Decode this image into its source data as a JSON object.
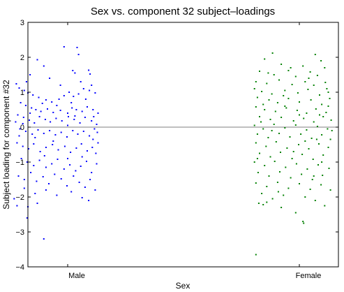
{
  "chart_data": {
    "type": "scatter",
    "title": "Sex vs. component 32 subject–loadings",
    "xlabel": "Sex",
    "ylabel": "Subject loading for component #32",
    "categories": [
      "Male",
      "Female"
    ],
    "ylim": [
      -4,
      3
    ],
    "yticks": [
      -4,
      -3,
      -2,
      -1,
      0,
      1,
      2,
      3
    ],
    "yticklabels": [
      "−4",
      "−3",
      "−2",
      "−1",
      "0",
      "1",
      "2",
      "3"
    ],
    "reference_line_y": 0,
    "grid": false,
    "legend": "none",
    "series": [
      {
        "category": "Male",
        "color": "#0000ff",
        "points": [
          [
            -0.05,
            2.3
          ],
          [
            0.13,
            2.28
          ],
          [
            0.15,
            2.08
          ],
          [
            -0.42,
            1.93
          ],
          [
            -0.33,
            1.75
          ],
          [
            0.07,
            1.62
          ],
          [
            0.1,
            1.55
          ],
          [
            -0.52,
            1.5
          ],
          [
            0.29,
            1.63
          ],
          [
            0.31,
            1.52
          ],
          [
            -0.71,
            1.24
          ],
          [
            -0.67,
            1.12
          ],
          [
            -0.6,
            1.05
          ],
          [
            -0.55,
            0.98
          ],
          [
            -0.48,
            0.92
          ],
          [
            -0.4,
            0.85
          ],
          [
            -0.3,
            0.78
          ],
          [
            -0.22,
            0.72
          ],
          [
            -0.12,
            0.8
          ],
          [
            -0.05,
            0.9
          ],
          [
            0.02,
            1.0
          ],
          [
            0.08,
            0.88
          ],
          [
            0.15,
            0.95
          ],
          [
            0.22,
            1.1
          ],
          [
            0.3,
            1.05
          ],
          [
            0.38,
            0.98
          ],
          [
            -0.65,
            0.7
          ],
          [
            -0.58,
            0.62
          ],
          [
            -0.5,
            0.55
          ],
          [
            -0.44,
            0.5
          ],
          [
            -0.37,
            0.45
          ],
          [
            -0.28,
            0.52
          ],
          [
            -0.2,
            0.42
          ],
          [
            -0.1,
            0.48
          ],
          [
            0.0,
            0.4
          ],
          [
            0.06,
            0.55
          ],
          [
            0.12,
            0.5
          ],
          [
            0.2,
            0.45
          ],
          [
            0.27,
            0.58
          ],
          [
            0.35,
            0.5
          ],
          [
            -0.69,
            0.35
          ],
          [
            -0.61,
            0.28
          ],
          [
            -0.53,
            0.2
          ],
          [
            -0.46,
            0.12
          ],
          [
            -0.39,
            0.3
          ],
          [
            -0.31,
            0.22
          ],
          [
            -0.24,
            0.15
          ],
          [
            -0.16,
            0.25
          ],
          [
            -0.08,
            0.18
          ],
          [
            0.01,
            0.3
          ],
          [
            0.09,
            0.22
          ],
          [
            0.17,
            0.12
          ],
          [
            0.24,
            0.28
          ],
          [
            0.33,
            0.18
          ],
          [
            0.4,
            0.08
          ],
          [
            -0.66,
            -0.05
          ],
          [
            -0.58,
            -0.12
          ],
          [
            -0.49,
            -0.2
          ],
          [
            -0.41,
            -0.08
          ],
          [
            -0.33,
            -0.18
          ],
          [
            -0.25,
            -0.1
          ],
          [
            -0.17,
            -0.22
          ],
          [
            -0.09,
            -0.15
          ],
          [
            -0.01,
            -0.28
          ],
          [
            0.07,
            -0.1
          ],
          [
            0.14,
            -0.2
          ],
          [
            0.22,
            -0.12
          ],
          [
            0.3,
            -0.25
          ],
          [
            0.37,
            -0.05
          ],
          [
            0.41,
            -0.15
          ],
          [
            -0.7,
            -0.45
          ],
          [
            -0.62,
            -0.55
          ],
          [
            -0.54,
            -0.62
          ],
          [
            -0.47,
            -0.48
          ],
          [
            -0.38,
            -0.7
          ],
          [
            -0.3,
            -0.58
          ],
          [
            -0.21,
            -0.5
          ],
          [
            -0.13,
            -0.65
          ],
          [
            -0.04,
            -0.55
          ],
          [
            0.04,
            -0.72
          ],
          [
            0.12,
            -0.6
          ],
          [
            0.19,
            -0.48
          ],
          [
            0.27,
            -0.68
          ],
          [
            0.34,
            -0.58
          ],
          [
            0.39,
            -0.75
          ],
          [
            -0.64,
            -0.9
          ],
          [
            -0.56,
            -1.0
          ],
          [
            -0.47,
            -1.1
          ],
          [
            -0.39,
            -0.95
          ],
          [
            -0.3,
            -1.15
          ],
          [
            -0.22,
            -1.05
          ],
          [
            -0.14,
            -0.92
          ],
          [
            -0.05,
            -1.2
          ],
          [
            0.03,
            -1.08
          ],
          [
            0.11,
            -1.25
          ],
          [
            0.18,
            -1.12
          ],
          [
            0.26,
            -0.98
          ],
          [
            0.33,
            -1.3
          ],
          [
            0.4,
            -1.05
          ],
          [
            -0.68,
            -1.4
          ],
          [
            -0.6,
            -1.5
          ],
          [
            -0.51,
            -1.3
          ],
          [
            -0.43,
            -1.55
          ],
          [
            -0.34,
            -1.42
          ],
          [
            -0.26,
            -1.62
          ],
          [
            -0.18,
            -1.35
          ],
          [
            -0.09,
            -1.48
          ],
          [
            -0.01,
            -1.68
          ],
          [
            0.08,
            -1.4
          ],
          [
            0.16,
            -1.58
          ],
          [
            0.24,
            -1.72
          ],
          [
            0.31,
            -1.5
          ],
          [
            0.38,
            -1.8
          ],
          [
            -0.6,
            -1.75
          ],
          [
            -0.45,
            -1.9
          ],
          [
            -0.3,
            -1.8
          ],
          [
            -0.15,
            -1.95
          ],
          [
            0.05,
            -1.85
          ],
          [
            0.2,
            -2.02
          ],
          [
            0.29,
            -2.1
          ],
          [
            -0.74,
            -2.05
          ],
          [
            -0.7,
            -2.25
          ],
          [
            -0.55,
            -2.28
          ],
          [
            -0.42,
            -2.18
          ],
          [
            -0.56,
            -2.6
          ],
          [
            -0.33,
            -3.2
          ],
          [
            -0.62,
            0.1
          ],
          [
            -0.52,
            0.4
          ],
          [
            -0.35,
            0.68
          ],
          [
            -0.15,
            0.62
          ],
          [
            0.05,
            0.7
          ],
          [
            0.25,
            0.8
          ],
          [
            0.36,
            0.3
          ],
          [
            -0.45,
            -0.3
          ],
          [
            -0.2,
            -0.4
          ],
          [
            0.0,
            -0.9
          ],
          [
            0.2,
            -0.85
          ],
          [
            0.35,
            -0.35
          ],
          [
            -0.57,
            1.3
          ],
          [
            -0.25,
            1.4
          ],
          [
            -0.1,
            1.2
          ],
          [
            0.18,
            1.3
          ],
          [
            0.33,
            1.2
          ],
          [
            -0.72,
            0.15
          ],
          [
            -0.67,
            -0.25
          ],
          [
            0.42,
            0.4
          ],
          [
            0.42,
            -0.45
          ],
          [
            0.0,
            0.05
          ],
          [
            -0.32,
            -0.82
          ],
          [
            0.1,
            0.32
          ]
        ]
      },
      {
        "category": "Female",
        "color": "#008000",
        "points": [
          [
            -0.37,
            2.12
          ],
          [
            0.22,
            2.08
          ],
          [
            -0.48,
            1.95
          ],
          [
            0.3,
            1.9
          ],
          [
            -0.25,
            1.8
          ],
          [
            0.05,
            1.75
          ],
          [
            0.35,
            1.7
          ],
          [
            -0.55,
            1.6
          ],
          [
            -0.15,
            1.62
          ],
          [
            0.15,
            1.58
          ],
          [
            -0.35,
            1.5
          ],
          [
            -0.05,
            1.45
          ],
          [
            0.25,
            1.48
          ],
          [
            -0.6,
            1.3
          ],
          [
            -0.45,
            1.25
          ],
          [
            -0.28,
            1.35
          ],
          [
            -0.1,
            1.22
          ],
          [
            0.08,
            1.3
          ],
          [
            0.2,
            1.2
          ],
          [
            0.36,
            1.28
          ],
          [
            -0.62,
            1.1
          ],
          [
            -0.52,
            1.02
          ],
          [
            -0.38,
            0.95
          ],
          [
            -0.2,
            1.05
          ],
          [
            -0.02,
            0.98
          ],
          [
            0.12,
            1.08
          ],
          [
            0.28,
            0.92
          ],
          [
            0.4,
            1.0
          ],
          [
            -0.58,
            0.85
          ],
          [
            -0.42,
            0.78
          ],
          [
            -0.3,
            0.7
          ],
          [
            -0.15,
            0.82
          ],
          [
            0.0,
            0.72
          ],
          [
            0.16,
            0.78
          ],
          [
            0.31,
            0.65
          ],
          [
            0.42,
            0.82
          ],
          [
            -0.6,
            0.58
          ],
          [
            -0.48,
            0.5
          ],
          [
            -0.33,
            0.45
          ],
          [
            -0.18,
            0.55
          ],
          [
            -0.03,
            0.48
          ],
          [
            0.1,
            0.4
          ],
          [
            0.23,
            0.52
          ],
          [
            0.37,
            0.42
          ],
          [
            -0.55,
            0.3
          ],
          [
            -0.4,
            0.22
          ],
          [
            -0.25,
            0.28
          ],
          [
            -0.08,
            0.18
          ],
          [
            0.06,
            0.25
          ],
          [
            0.2,
            0.15
          ],
          [
            0.33,
            0.3
          ],
          [
            -0.62,
            0.05
          ],
          [
            -0.5,
            -0.05
          ],
          [
            -0.35,
            0.08
          ],
          [
            -0.2,
            -0.02
          ],
          [
            -0.05,
            0.06
          ],
          [
            0.1,
            -0.08
          ],
          [
            0.25,
            0.02
          ],
          [
            0.39,
            -0.05
          ],
          [
            -0.58,
            -0.2
          ],
          [
            -0.43,
            -0.3
          ],
          [
            -0.28,
            -0.18
          ],
          [
            -0.13,
            -0.28
          ],
          [
            0.02,
            -0.2
          ],
          [
            0.17,
            -0.32
          ],
          [
            0.31,
            -0.22
          ],
          [
            0.43,
            -0.35
          ],
          [
            -0.6,
            -0.45
          ],
          [
            -0.46,
            -0.55
          ],
          [
            -0.32,
            -0.42
          ],
          [
            -0.17,
            -0.6
          ],
          [
            -0.01,
            -0.5
          ],
          [
            0.13,
            -0.62
          ],
          [
            0.27,
            -0.48
          ],
          [
            0.4,
            -0.58
          ],
          [
            -0.55,
            -0.75
          ],
          [
            -0.4,
            -0.85
          ],
          [
            -0.26,
            -0.72
          ],
          [
            -0.1,
            -0.9
          ],
          [
            0.04,
            -0.78
          ],
          [
            0.19,
            -0.92
          ],
          [
            0.33,
            -0.8
          ],
          [
            -0.62,
            -1.0
          ],
          [
            -0.48,
            -1.1
          ],
          [
            -0.34,
            -0.98
          ],
          [
            -0.19,
            -1.15
          ],
          [
            -0.04,
            -1.05
          ],
          [
            0.11,
            -1.2
          ],
          [
            0.26,
            -1.08
          ],
          [
            0.41,
            -1.18
          ],
          [
            -0.57,
            -1.3
          ],
          [
            -0.42,
            -1.4
          ],
          [
            -0.27,
            -1.28
          ],
          [
            -0.12,
            -1.45
          ],
          [
            0.03,
            -1.35
          ],
          [
            0.18,
            -1.5
          ],
          [
            0.32,
            -1.38
          ],
          [
            -0.6,
            -1.6
          ],
          [
            -0.45,
            -1.7
          ],
          [
            -0.3,
            -1.58
          ],
          [
            -0.15,
            -1.75
          ],
          [
            0.0,
            -1.62
          ],
          [
            0.15,
            -1.78
          ],
          [
            0.3,
            -1.65
          ],
          [
            0.43,
            -1.8
          ],
          [
            -0.52,
            -1.9
          ],
          [
            -0.37,
            -2.05
          ],
          [
            -0.22,
            -1.95
          ],
          [
            0.08,
            -2.0
          ],
          [
            0.35,
            -2.25
          ],
          [
            -0.56,
            -2.18
          ],
          [
            -0.5,
            -2.22
          ],
          [
            -0.45,
            -2.15
          ],
          [
            -0.25,
            -2.3
          ],
          [
            -0.05,
            -2.45
          ],
          [
            0.05,
            -2.7
          ],
          [
            0.06,
            -2.75
          ],
          [
            -0.6,
            -3.65
          ],
          [
            -0.5,
            0.65
          ],
          [
            -0.22,
            0.9
          ],
          [
            0.28,
            0.35
          ],
          [
            0.08,
            -0.4
          ],
          [
            -0.38,
            -0.1
          ],
          [
            0.4,
            0.6
          ],
          [
            -0.12,
            1.7
          ],
          [
            0.2,
            -1.4
          ],
          [
            -0.58,
            -0.9
          ],
          [
            0.45,
            -0.1
          ],
          [
            0.44,
            0.2
          ],
          [
            -0.43,
            1.55
          ],
          [
            0.13,
            1.4
          ],
          [
            -0.29,
            -1.85
          ],
          [
            0.22,
            -2.1
          ],
          [
            0.38,
            1.1
          ],
          [
            -0.53,
            0.15
          ],
          [
            0.0,
            0.35
          ],
          [
            -0.2,
            0.6
          ],
          [
            0.31,
            -1.0
          ],
          [
            0.24,
            -0.35
          ],
          [
            -0.08,
            -0.7
          ]
        ]
      }
    ]
  }
}
